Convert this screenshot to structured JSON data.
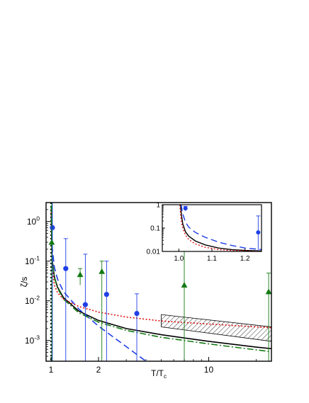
{
  "chart_data": [
    {
      "type": "line",
      "panel": "main",
      "xlabel": "T/T",
      "xlabel_sub": "c",
      "ylabel": "ζ/s",
      "xscale": "log",
      "yscale": "log",
      "xlim": [
        0.93,
        25
      ],
      "ylim": [
        0.0003,
        3
      ],
      "xticks": [
        {
          "value": 1,
          "label": "1"
        },
        {
          "value": 2,
          "label": "2"
        },
        {
          "value": 10,
          "label": "10"
        }
      ],
      "yticks": [
        {
          "value": 1,
          "label": "10",
          "exp": "0"
        },
        {
          "value": 0.1,
          "label": "10",
          "exp": "-1"
        },
        {
          "value": 0.01,
          "label": "10",
          "exp": "-2"
        },
        {
          "value": 0.001,
          "label": "10",
          "exp": "-3"
        }
      ],
      "vertical_line": {
        "x": 1,
        "style": "dotted",
        "color": "#000000"
      },
      "series": [
        {
          "style": "solid",
          "color": "#000000",
          "x": [
            1.003,
            1.01,
            1.02,
            1.05,
            1.1,
            1.2,
            1.5,
            2,
            3,
            5,
            10,
            20,
            25
          ],
          "y": [
            2.5,
            0.3,
            0.1,
            0.04,
            0.022,
            0.012,
            0.0055,
            0.0032,
            0.002,
            0.0014,
            0.00095,
            0.00068,
            0.00062
          ]
        },
        {
          "style": "dashed",
          "color": "#1f3fe6",
          "x": [
            1.003,
            1.01,
            1.02,
            1.05,
            1.1,
            1.2,
            1.5,
            2,
            3,
            4
          ],
          "y": [
            2.5,
            0.5,
            0.2,
            0.07,
            0.035,
            0.017,
            0.0062,
            0.0023,
            0.0007,
            0.0003
          ]
        },
        {
          "style": "dotted",
          "color": "#e01010",
          "x": [
            1.003,
            1.01,
            1.02,
            1.05,
            1.1,
            1.2,
            1.5,
            2,
            3,
            5,
            10,
            20,
            25
          ],
          "y": [
            2.5,
            0.2,
            0.06,
            0.025,
            0.016,
            0.011,
            0.0072,
            0.0052,
            0.0039,
            0.0031,
            0.0026,
            0.0022,
            0.0021
          ]
        },
        {
          "style": "dash-dot",
          "color": "#127a12",
          "x": [
            1.003,
            1.01,
            1.02,
            1.05,
            1.1,
            1.2,
            1.5,
            2,
            3,
            5,
            10,
            20,
            25
          ],
          "y": [
            2.5,
            0.28,
            0.095,
            0.038,
            0.021,
            0.011,
            0.005,
            0.0029,
            0.0018,
            0.0012,
            0.00082,
            0.00058,
            0.00052
          ]
        }
      ],
      "band": {
        "color": "#000000",
        "pattern": "hatched",
        "x": [
          5,
          25
        ],
        "upper": [
          0.0045,
          0.0022
        ],
        "lower": [
          0.0022,
          0.00095
        ]
      },
      "data_points": [
        {
          "marker": "circle",
          "color": "#1f3fe6",
          "points": [
            {
              "x": 1.02,
              "y": 0.7,
              "err_lo": 0.0003,
              "err_hi": 3
            },
            {
              "x": 1.24,
              "y": 0.065,
              "err_lo": 0.0003,
              "err_hi": 0.37
            },
            {
              "x": 1.65,
              "y": 0.008,
              "err_lo": 0.0003,
              "err_hi": 0.15
            },
            {
              "x": 2.25,
              "y": 0.0145,
              "err_lo": 0.0003,
              "err_hi": 0.1
            },
            {
              "x": 3.5,
              "y": 0.0048,
              "err_lo": 0.0003,
              "err_hi": 0.015
            }
          ]
        },
        {
          "marker": "triangle",
          "color": "#127a12",
          "points": [
            {
              "x": 1.01,
              "y": 0.3,
              "err_lo": 0.0003,
              "err_hi": 3
            },
            {
              "x": 1.53,
              "y": 0.046,
              "err_lo": 0.025,
              "err_hi": 0.065
            },
            {
              "x": 2.1,
              "y": 0.055,
              "err_lo": 0.0003,
              "err_hi": 0.1
            },
            {
              "x": 7.0,
              "y": 0.025,
              "err_lo": 0.0003,
              "err_hi": 0.3
            },
            {
              "x": 24.0,
              "y": 0.017,
              "err_lo": 0.0003,
              "err_hi": 0.05
            }
          ]
        }
      ]
    },
    {
      "type": "line",
      "panel": "inset",
      "xscale": "linear",
      "yscale": "log",
      "xlim": [
        0.95,
        1.25
      ],
      "ylim": [
        0.01,
        1
      ],
      "xticks": [
        {
          "value": 1.0,
          "label": "1.0"
        },
        {
          "value": 1.1,
          "label": "1.1"
        },
        {
          "value": 1.2,
          "label": "1.2"
        }
      ],
      "yticks": [
        {
          "value": 1,
          "label": "1"
        },
        {
          "value": 0.1,
          "label": "0.1"
        },
        {
          "value": 0.01,
          "label": "0.01"
        }
      ],
      "series": [
        {
          "style": "solid",
          "color": "#000000",
          "x": [
            1.005,
            1.008,
            1.012,
            1.02,
            1.03,
            1.05,
            1.08,
            1.12,
            1.16,
            1.2,
            1.25
          ],
          "y": [
            1,
            0.35,
            0.15,
            0.07,
            0.045,
            0.028,
            0.019,
            0.014,
            0.012,
            0.011,
            0.0105
          ]
        },
        {
          "style": "dashed",
          "color": "#1f3fe6",
          "x": [
            1.007,
            1.012,
            1.02,
            1.03,
            1.05,
            1.08,
            1.12,
            1.16,
            1.2,
            1.25
          ],
          "y": [
            1,
            0.4,
            0.18,
            0.11,
            0.065,
            0.04,
            0.025,
            0.018,
            0.014,
            0.012
          ]
        },
        {
          "style": "dotted",
          "color": "#e01010",
          "x": [
            1.003,
            1.006,
            1.01,
            1.02,
            1.03,
            1.05,
            1.08,
            1.12,
            1.16,
            1.2,
            1.25
          ],
          "y": [
            1,
            0.3,
            0.12,
            0.05,
            0.032,
            0.021,
            0.015,
            0.012,
            0.011,
            0.0105,
            0.01
          ]
        }
      ],
      "data_points": [
        {
          "marker": "circle",
          "color": "#1f3fe6",
          "points": [
            {
              "x": 1.02,
              "y": 0.7,
              "err_lo": 0.55,
              "err_hi": 0.85
            },
            {
              "x": 1.24,
              "y": 0.065,
              "err_lo": 0.01,
              "err_hi": 0.33
            }
          ]
        }
      ]
    }
  ]
}
